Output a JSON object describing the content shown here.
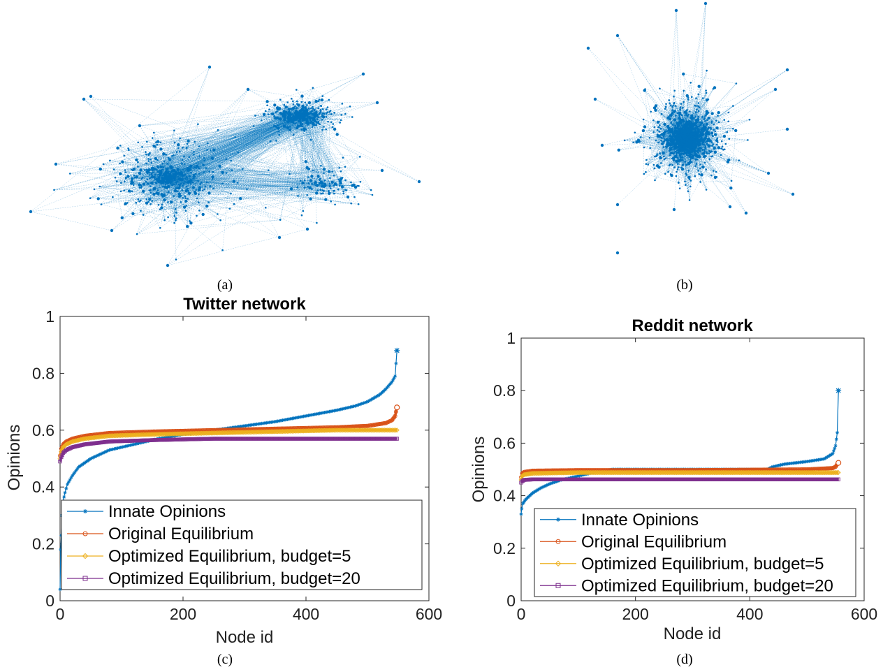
{
  "captions": {
    "a": "(a)",
    "b": "(b)",
    "c": "(c)",
    "d": "(d)"
  },
  "colors": {
    "network": "#0072BD",
    "innate": "#0072BD",
    "original": "#D95319",
    "budget5": "#EDB120",
    "budget20": "#7E2F8E"
  },
  "chart_data": [
    {
      "type": "line",
      "title": "Twitter network",
      "xlabel": "Node id",
      "ylabel": "Opinions",
      "xlim": [
        0,
        600
      ],
      "ylim": [
        0,
        1
      ],
      "xticks": [
        0,
        200,
        400,
        600
      ],
      "yticks": [
        0,
        0.2,
        0.4,
        0.6,
        0.8,
        1
      ],
      "ytick_labels": [
        "0",
        "0.2",
        "0.4",
        "0.6",
        "0.8",
        "1"
      ],
      "legend_position": "bottom-left",
      "series": [
        {
          "name": "Innate Opinions",
          "marker": "asterisk",
          "x": [
            0,
            1,
            2,
            3,
            5,
            8,
            12,
            20,
            30,
            50,
            80,
            120,
            160,
            200,
            250,
            300,
            350,
            400,
            450,
            480,
            500,
            520,
            530,
            540,
            545,
            548
          ],
          "y": [
            0.04,
            0.18,
            0.23,
            0.3,
            0.35,
            0.38,
            0.41,
            0.44,
            0.47,
            0.5,
            0.53,
            0.55,
            0.57,
            0.585,
            0.6,
            0.615,
            0.63,
            0.65,
            0.67,
            0.685,
            0.7,
            0.725,
            0.745,
            0.77,
            0.79,
            0.88
          ]
        },
        {
          "name": "Original Equilibrium",
          "marker": "circle",
          "x": [
            0,
            2,
            5,
            10,
            20,
            40,
            80,
            150,
            250,
            350,
            450,
            500,
            530,
            540,
            545,
            548
          ],
          "y": [
            0.51,
            0.535,
            0.55,
            0.56,
            0.57,
            0.58,
            0.59,
            0.595,
            0.6,
            0.605,
            0.61,
            0.615,
            0.625,
            0.635,
            0.65,
            0.68
          ]
        },
        {
          "name": "Optimized Equilibrium, budget=5",
          "marker": "diamond",
          "x": [
            0,
            2,
            5,
            10,
            20,
            40,
            80,
            150,
            250,
            350,
            450,
            548
          ],
          "y": [
            0.5,
            0.525,
            0.54,
            0.55,
            0.56,
            0.57,
            0.58,
            0.585,
            0.59,
            0.595,
            0.6,
            0.6
          ]
        },
        {
          "name": "Optimized Equilibrium, budget=20",
          "marker": "square",
          "x": [
            0,
            2,
            5,
            10,
            20,
            40,
            80,
            150,
            250,
            350,
            450,
            548
          ],
          "y": [
            0.49,
            0.505,
            0.52,
            0.53,
            0.54,
            0.55,
            0.56,
            0.565,
            0.57,
            0.57,
            0.57,
            0.57
          ]
        }
      ]
    },
    {
      "type": "line",
      "title": "Reddit network",
      "xlabel": "Node id",
      "ylabel": "Opinions",
      "xlim": [
        0,
        600
      ],
      "ylim": [
        0,
        1
      ],
      "xticks": [
        0,
        200,
        400,
        600
      ],
      "yticks": [
        0,
        0.2,
        0.4,
        0.6,
        0.8,
        1
      ],
      "ytick_labels": [
        "0",
        "0.2",
        "0.4",
        "0.6",
        "0.8",
        "1"
      ],
      "legend_position": "bottom-left",
      "series": [
        {
          "name": "Innate Opinions",
          "marker": "asterisk",
          "x": [
            0,
            1,
            3,
            6,
            10,
            20,
            35,
            50,
            70,
            100,
            130,
            160,
            200,
            300,
            400,
            430,
            440,
            460,
            500,
            530,
            545,
            550,
            553,
            555
          ],
          "y": [
            0.33,
            0.35,
            0.37,
            0.38,
            0.39,
            0.41,
            0.43,
            0.445,
            0.46,
            0.475,
            0.49,
            0.5,
            0.5,
            0.5,
            0.5,
            0.5,
            0.51,
            0.52,
            0.53,
            0.54,
            0.56,
            0.59,
            0.64,
            0.8
          ]
        },
        {
          "name": "Original Equilibrium",
          "marker": "circle",
          "x": [
            0,
            2,
            5,
            20,
            100,
            300,
            500,
            545,
            550,
            553,
            555
          ],
          "y": [
            0.47,
            0.485,
            0.49,
            0.495,
            0.497,
            0.497,
            0.5,
            0.505,
            0.51,
            0.52,
            0.525
          ]
        },
        {
          "name": "Optimized Equilibrium, budget=5",
          "marker": "diamond",
          "x": [
            0,
            2,
            5,
            20,
            100,
            300,
            555
          ],
          "y": [
            0.46,
            0.475,
            0.48,
            0.485,
            0.488,
            0.488,
            0.488
          ]
        },
        {
          "name": "Optimized Equilibrium, budget=20",
          "marker": "square",
          "x": [
            0,
            2,
            5,
            20,
            100,
            300,
            555
          ],
          "y": [
            0.45,
            0.455,
            0.46,
            0.462,
            0.462,
            0.462,
            0.462
          ]
        }
      ]
    }
  ]
}
